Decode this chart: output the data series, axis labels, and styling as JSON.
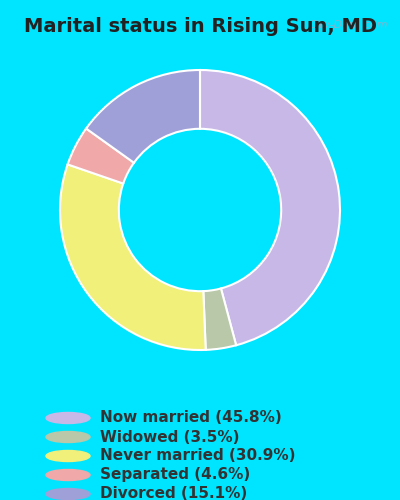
{
  "title": "Marital status in Rising Sun, MD",
  "slices": [
    {
      "label": "Now married (45.8%)",
      "value": 45.8,
      "color": "#c8b8e8"
    },
    {
      "label": "Widowed (3.5%)",
      "value": 3.5,
      "color": "#b8c8a8"
    },
    {
      "label": "Never married (30.9%)",
      "value": 30.9,
      "color": "#f0f07a"
    },
    {
      "label": "Separated (4.6%)",
      "value": 4.6,
      "color": "#f0a8a8"
    },
    {
      "label": "Divorced (15.1%)",
      "value": 15.1,
      "color": "#a0a0d8"
    }
  ],
  "bg_outer": "#00e5ff",
  "bg_chart": "#d8ede0",
  "title_color": "#222222",
  "title_fontsize": 14,
  "legend_fontsize": 11,
  "watermark": "City-Data.com"
}
